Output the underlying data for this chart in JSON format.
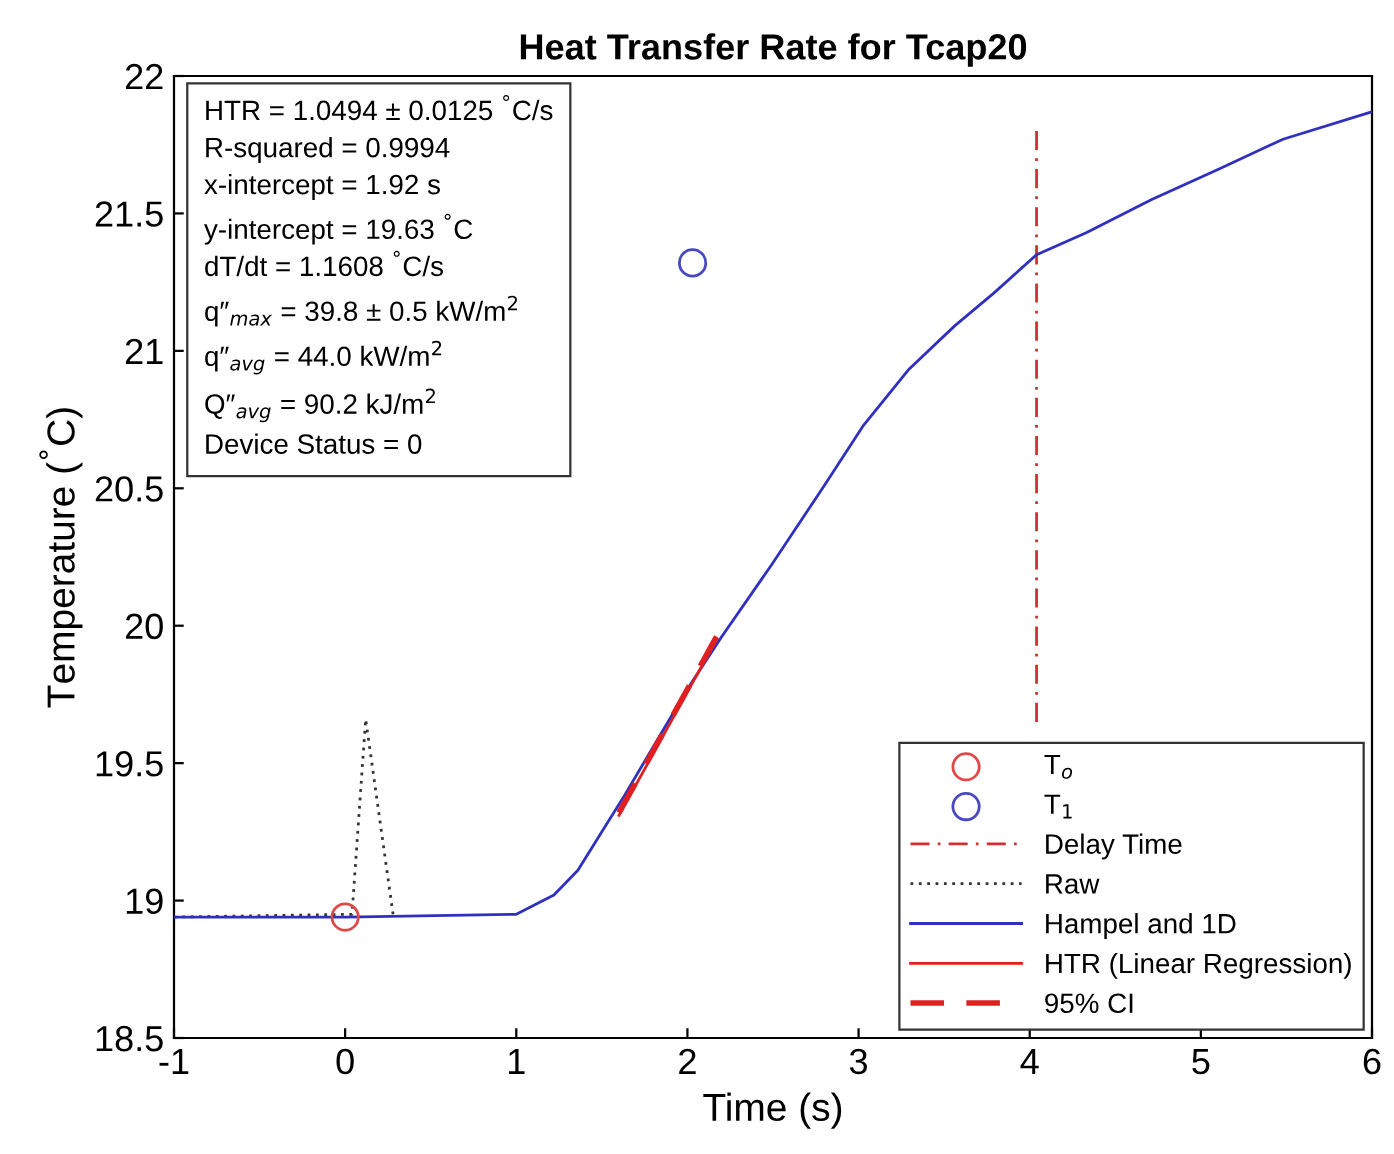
{
  "chart_data": {
    "type": "line",
    "title": "Heat Transfer Rate for Tcap20",
    "xlabel": "Time (s)",
    "ylabel": "Temperature ($^{°}$C)",
    "xlim": [
      -1,
      6
    ],
    "xticks": [
      {
        "value": -1,
        "label": "-1"
      },
      0,
      1,
      2,
      3,
      4,
      5,
      6
    ],
    "ylim": [
      18.5,
      22
    ],
    "yticks": [
      18.5,
      19,
      19.5,
      20,
      20.5,
      21,
      21.5,
      22
    ],
    "grid": false,
    "legend": "bottom right",
    "series": [
      {
        "name": "T$_{o}$",
        "type": "scatter",
        "marker": "circle",
        "color": "#e04848",
        "x": [
          0
        ],
        "values": [
          18.94
        ]
      },
      {
        "name": "T$_{1}$",
        "type": "scatter",
        "marker": "circle",
        "color": "#4848c0",
        "x": [
          2.03
        ],
        "values": [
          21.32
        ]
      },
      {
        "name": "Delay Time",
        "type": "line",
        "line_style": "dashdot",
        "color": "#d03030",
        "x": [
          4.04,
          4.04
        ],
        "values": [
          19.65,
          21.8
        ]
      },
      {
        "name": "Raw",
        "type": "line",
        "line_style": "dotted",
        "color": "#333333",
        "x": [
          -1,
          0.04,
          0.12,
          0.28
        ],
        "values": [
          18.94,
          18.95,
          19.66,
          18.95
        ]
      },
      {
        "name": "Hampel and 1D",
        "type": "line",
        "line_style": "solid",
        "color": "#3030c0",
        "x": [
          -1,
          0,
          1.0,
          1.22,
          1.36,
          1.51,
          1.63,
          2.0,
          2.2,
          2.49,
          2.8,
          3.03,
          3.29,
          3.56,
          3.79,
          4.04,
          4.33,
          4.71,
          5.1,
          5.48,
          6.0
        ],
        "values": [
          18.94,
          18.94,
          18.95,
          19.02,
          19.11,
          19.26,
          19.38,
          19.77,
          19.96,
          20.22,
          20.51,
          20.73,
          20.93,
          21.09,
          21.21,
          21.35,
          21.43,
          21.55,
          21.66,
          21.77,
          21.87
        ]
      },
      {
        "name": "HTR (Linear Regression)",
        "type": "line",
        "line_style": "solid",
        "color": "#e02020",
        "x": [
          1.6,
          2.17
        ],
        "values": [
          19.31,
          19.95
        ]
      },
      {
        "name": "95% CI",
        "type": "line",
        "line_style": "dashed",
        "color": "#e02020",
        "x": [
          1.6,
          2.17
        ],
        "values": [
          19.32,
          19.96
        ]
      }
    ],
    "annotations": [
      "HTR = 1.0494 ± 0.0125 $^{°}$C/s",
      "R-squared = 0.9994",
      "x-intercept = 1.92 s",
      "y-intercept = 19.63 $^{°}$C",
      "dT/dt = 1.1608 $^{°}$C/s",
      "q″$_{max}$ = 39.8 ± 0.5 kW/m$^{2}$",
      "q″$_{avg}$ = 44.0 kW/m$^{2}$",
      "Q″$_{avg}$ = 90.2 kJ/m$^{2}$",
      "Device Status = 0"
    ]
  }
}
